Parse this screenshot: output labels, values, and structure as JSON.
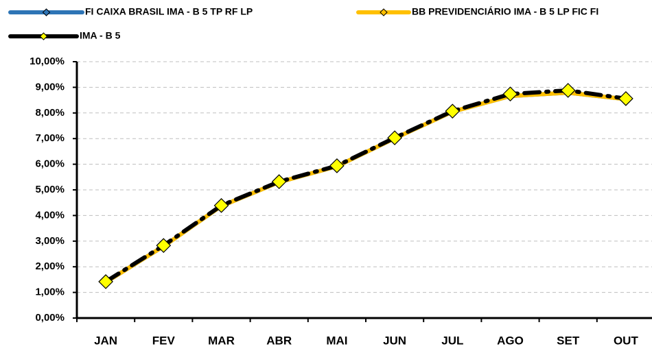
{
  "chart_data": {
    "type": "line",
    "categories": [
      "JAN",
      "FEV",
      "MAR",
      "ABR",
      "MAI",
      "JUN",
      "JUL",
      "AGO",
      "SET",
      "OUT"
    ],
    "series": [
      {
        "name": "FI CAIXA BRASIL IMA - B 5 TP RF LP",
        "color": "#2e75b6",
        "values": [
          1.4,
          2.8,
          4.37,
          5.3,
          5.92,
          7.01,
          8.05,
          8.66,
          8.79,
          8.54
        ]
      },
      {
        "name": "BB PREVIDENCIÁRIO IMA - B 5 LP FIC FI",
        "color": "#ffc000",
        "values": [
          1.4,
          2.8,
          4.37,
          5.3,
          5.92,
          7.01,
          8.05,
          8.66,
          8.79,
          8.54
        ]
      },
      {
        "name": "IMA - B 5",
        "color": "#000000",
        "marker_color": "#ffff00",
        "values": [
          1.42,
          2.83,
          4.39,
          5.32,
          5.94,
          7.03,
          8.07,
          8.74,
          8.88,
          8.56
        ]
      }
    ],
    "ylim": [
      0,
      10
    ],
    "yticks": [
      {
        "value": 0,
        "label": "0,00%"
      },
      {
        "value": 1,
        "label": "1,00%"
      },
      {
        "value": 2,
        "label": "2,00%"
      },
      {
        "value": 3,
        "label": "3,00%"
      },
      {
        "value": 4,
        "label": "4,00%"
      },
      {
        "value": 5,
        "label": "5,00%"
      },
      {
        "value": 6,
        "label": "6,00%"
      },
      {
        "value": 7,
        "label": "7,00%"
      },
      {
        "value": 8,
        "label": "8,00%"
      },
      {
        "value": 9,
        "label": "9,00%"
      },
      {
        "value": 10,
        "label": "10,00%"
      }
    ],
    "grid": true
  }
}
